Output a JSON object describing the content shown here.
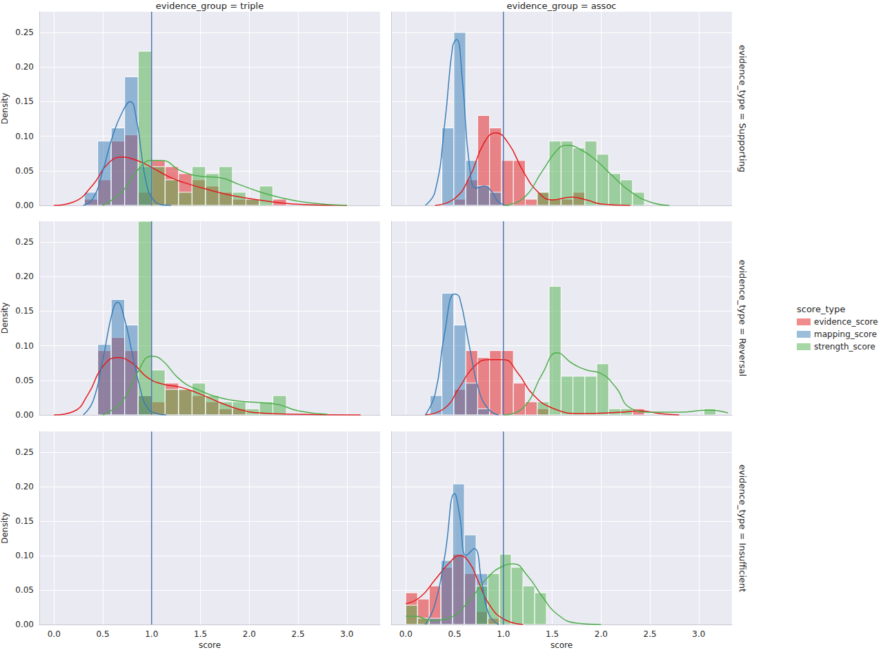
{
  "chart_data": {
    "type": "histogram",
    "columns": [
      "evidence_group = triple",
      "evidence_group = assoc"
    ],
    "rows": [
      "evidence_type = Supporting",
      "evidence_type = Reversal",
      "evidence_type = Insufficient"
    ],
    "x_label": "score",
    "y_label": "Density",
    "xlim": [
      -0.15,
      3.34
    ],
    "xticks": [
      {
        "value": 0,
        "label": "0.0"
      },
      {
        "value": 0.5,
        "label": "0.5"
      },
      {
        "value": 1,
        "label": "1.0"
      },
      {
        "value": 1.5,
        "label": "1.5"
      },
      {
        "value": 2,
        "label": "2.0"
      },
      {
        "value": 2.5,
        "label": "2.5"
      },
      {
        "value": 3,
        "label": "3.0"
      }
    ],
    "ylim": [
      0,
      0.28
    ],
    "yticks": [
      {
        "value": 0,
        "label": "0.00"
      },
      {
        "value": 0.05,
        "label": "0.05"
      },
      {
        "value": 0.1,
        "label": "0.10"
      },
      {
        "value": 0.15,
        "label": "0.15"
      },
      {
        "value": 0.2,
        "label": "0.20"
      },
      {
        "value": 0.25,
        "label": "0.25"
      }
    ],
    "grid": true,
    "legend": "right",
    "legend_title": "score_type",
    "series": [
      {
        "name": "evidence_score",
        "color": "#e41a1c"
      },
      {
        "name": "mapping_score",
        "color": "#377eb8"
      },
      {
        "name": "strength_score",
        "color": "#4daf4a"
      }
    ],
    "reference_line": {
      "x": 1,
      "color": "#4c72b0"
    },
    "panels": [
      {
        "row": "evidence_type = Supporting",
        "column": "evidence_group = triple",
        "bins": [
          0.31,
          0.448,
          0.586,
          0.724,
          0.862,
          1.0,
          1.138,
          1.276,
          1.414,
          1.552,
          1.69,
          1.828,
          1.966,
          2.104,
          2.242,
          2.38,
          2.518
        ],
        "series": [
          {
            "name": "evidence_score",
            "values": [
              0.009,
              0.037,
              0.093,
              0.102,
              0.019,
              0.065,
              0.056,
              0.046,
              0.037,
              0.028,
              0.019,
              0.009,
              0.009,
              0,
              0.009,
              0
            ],
            "kde_x": [
              0,
              0.2,
              0.4,
              0.55,
              0.7,
              0.85,
              1.0,
              1.2,
              1.4,
              1.6,
              1.8,
              2.0,
              2.3,
              2.6,
              3.0
            ],
            "kde_y": [
              0,
              0.005,
              0.03,
              0.06,
              0.07,
              0.065,
              0.055,
              0.04,
              0.03,
              0.022,
              0.015,
              0.01,
              0.004,
              0.001,
              0
            ]
          },
          {
            "name": "mapping_score",
            "values": [
              0.019,
              0.093,
              0.112,
              0.186,
              0.056,
              0,
              0,
              0,
              0,
              0,
              0,
              0,
              0,
              0,
              0,
              0
            ],
            "kde_x": [
              0.3,
              0.4,
              0.5,
              0.6,
              0.7,
              0.78,
              0.85,
              0.9,
              0.95,
              1.0,
              1.1,
              1.2
            ],
            "kde_y": [
              0,
              0.01,
              0.05,
              0.1,
              0.135,
              0.15,
              0.12,
              0.07,
              0.03,
              0.012,
              0.001,
              0
            ]
          },
          {
            "name": "strength_score",
            "values": [
              0,
              0,
              0,
              0,
              0.223,
              0.056,
              0.037,
              0.019,
              0.056,
              0.046,
              0.056,
              0.019,
              0.009,
              0.028,
              0,
              0
            ],
            "kde_x": [
              0.5,
              0.7,
              0.85,
              1.0,
              1.1,
              1.3,
              1.5,
              1.7,
              1.9,
              2.1,
              2.3,
              2.6,
              3.0
            ],
            "kde_y": [
              0,
              0.02,
              0.05,
              0.065,
              0.065,
              0.05,
              0.042,
              0.04,
              0.03,
              0.02,
              0.012,
              0.004,
              0
            ]
          }
        ]
      },
      {
        "row": "evidence_type = Supporting",
        "column": "evidence_group = assoc",
        "bins": [
          0.37,
          0.492,
          0.614,
          0.736,
          0.858,
          0.98,
          1.102,
          1.224,
          1.346,
          1.468,
          1.59,
          1.712,
          1.834,
          1.956,
          2.078,
          2.2,
          2.322,
          2.444
        ],
        "series": [
          {
            "name": "evidence_score",
            "values": [
              0,
              0.009,
              0.037,
              0.13,
              0.112,
              0.065,
              0.065,
              0.009,
              0.019,
              0.009,
              0.009,
              0.019,
              0,
              0,
              0,
              0,
              0
            ],
            "kde_x": [
              0.3,
              0.5,
              0.65,
              0.8,
              0.92,
              1.05,
              1.2,
              1.35,
              1.5,
              1.7,
              1.85,
              2.0,
              2.3
            ],
            "kde_y": [
              0,
              0.01,
              0.04,
              0.09,
              0.105,
              0.09,
              0.05,
              0.02,
              0.008,
              0.012,
              0.008,
              0.002,
              0
            ]
          },
          {
            "name": "mapping_score",
            "values": [
              0.112,
              0.25,
              0.065,
              0.028,
              0.019,
              0,
              0,
              0,
              0,
              0,
              0,
              0,
              0,
              0,
              0,
              0,
              0
            ],
            "kde_x": [
              0.2,
              0.3,
              0.4,
              0.48,
              0.52,
              0.58,
              0.65,
              0.72,
              0.8,
              0.88,
              0.95,
              1.05
            ],
            "kde_y": [
              0,
              0.02,
              0.12,
              0.23,
              0.24,
              0.18,
              0.06,
              0.025,
              0.028,
              0.02,
              0.005,
              0
            ]
          },
          {
            "name": "strength_score",
            "values": [
              0,
              0,
              0,
              0,
              0,
              0,
              0,
              0,
              0.019,
              0.093,
              0.093,
              0.083,
              0.093,
              0.074,
              0.046,
              0.037,
              0.019
            ],
            "kde_x": [
              1.0,
              1.2,
              1.4,
              1.55,
              1.65,
              1.8,
              1.95,
              2.1,
              2.3,
              2.5,
              2.7
            ],
            "kde_y": [
              0,
              0.01,
              0.05,
              0.08,
              0.087,
              0.08,
              0.065,
              0.045,
              0.02,
              0.005,
              0
            ]
          }
        ]
      },
      {
        "row": "evidence_type = Reversal",
        "column": "evidence_group = triple",
        "bins": [
          0.31,
          0.448,
          0.586,
          0.724,
          0.862,
          1.0,
          1.138,
          1.276,
          1.414,
          1.552,
          1.69,
          1.828,
          1.966,
          2.104,
          2.242,
          2.38,
          2.518
        ],
        "series": [
          {
            "name": "evidence_score",
            "values": [
              0,
              0.093,
              0.112,
              0.093,
              0.028,
              0.019,
              0.046,
              0.037,
              0.028,
              0.019,
              0.009,
              0.009,
              0,
              0,
              0,
              0
            ],
            "kde_x": [
              0,
              0.2,
              0.35,
              0.5,
              0.65,
              0.8,
              0.95,
              1.1,
              1.3,
              1.5,
              1.7,
              1.9,
              2.1,
              2.5,
              3.14
            ],
            "kde_y": [
              0,
              0.005,
              0.03,
              0.07,
              0.083,
              0.075,
              0.055,
              0.045,
              0.04,
              0.03,
              0.018,
              0.008,
              0.003,
              0.001,
              0
            ]
          },
          {
            "name": "mapping_score",
            "values": [
              0,
              0.102,
              0.167,
              0.13,
              0.028,
              0,
              0,
              0,
              0,
              0,
              0,
              0,
              0,
              0,
              0,
              0
            ],
            "kde_x": [
              0.3,
              0.4,
              0.5,
              0.6,
              0.65,
              0.72,
              0.8,
              0.88,
              0.95,
              1.05,
              1.15
            ],
            "kde_y": [
              0,
              0.02,
              0.08,
              0.15,
              0.163,
              0.14,
              0.09,
              0.04,
              0.012,
              0.002,
              0
            ]
          },
          {
            "name": "strength_score",
            "values": [
              0,
              0,
              0,
              0,
              0.28,
              0.065,
              0.037,
              0.037,
              0.046,
              0.028,
              0.019,
              0.019,
              0.009,
              0.019,
              0.028,
              0
            ],
            "kde_x": [
              0.5,
              0.7,
              0.85,
              1.0,
              1.1,
              1.3,
              1.5,
              1.7,
              1.9,
              2.1,
              2.3,
              2.5,
              2.8
            ],
            "kde_y": [
              0,
              0.02,
              0.06,
              0.085,
              0.08,
              0.05,
              0.035,
              0.025,
              0.02,
              0.018,
              0.015,
              0.006,
              0.001
            ]
          }
        ]
      },
      {
        "row": "evidence_type = Reversal",
        "column": "evidence_group = assoc",
        "bins": [
          0.248,
          0.37,
          0.492,
          0.614,
          0.736,
          0.858,
          0.98,
          1.102,
          1.224,
          1.346,
          1.468,
          1.59,
          1.712,
          1.834,
          1.956,
          2.078,
          2.2,
          2.322,
          2.444,
          2.566,
          2.688,
          2.81,
          2.932,
          3.054,
          3.176
        ],
        "series": [
          {
            "name": "evidence_score",
            "values": [
              0,
              0,
              0.037,
              0.093,
              0.083,
              0.093,
              0.093,
              0.046,
              0.019,
              0.009,
              0,
              0,
              0,
              0,
              0,
              0,
              0,
              0.009,
              0,
              0,
              0,
              0,
              0,
              0
            ],
            "kde_x": [
              0.2,
              0.4,
              0.55,
              0.7,
              0.85,
              1.0,
              1.15,
              1.3,
              1.5,
              1.8,
              2.2,
              2.4,
              2.6,
              2.8
            ],
            "kde_y": [
              0,
              0.01,
              0.04,
              0.07,
              0.08,
              0.08,
              0.06,
              0.03,
              0.01,
              0.002,
              0.004,
              0.006,
              0.002,
              0
            ]
          },
          {
            "name": "mapping_score",
            "values": [
              0.028,
              0.176,
              0.13,
              0.046,
              0.009,
              0,
              0,
              0,
              0,
              0,
              0,
              0,
              0,
              0,
              0,
              0,
              0,
              0,
              0,
              0,
              0,
              0,
              0,
              0
            ],
            "kde_x": [
              0.2,
              0.3,
              0.4,
              0.5,
              0.55,
              0.65,
              0.75,
              0.85,
              0.95
            ],
            "kde_y": [
              0,
              0.03,
              0.12,
              0.175,
              0.17,
              0.1,
              0.035,
              0.008,
              0
            ]
          },
          {
            "name": "strength_score",
            "values": [
              0,
              0,
              0,
              0,
              0,
              0,
              0,
              0,
              0,
              0.019,
              0.186,
              0.056,
              0.056,
              0.056,
              0.074,
              0.009,
              0.009,
              0,
              0,
              0,
              0,
              0,
              0,
              0.009
            ],
            "kde_x": [
              1.0,
              1.2,
              1.4,
              1.55,
              1.7,
              1.85,
              2.0,
              2.15,
              2.3,
              2.5,
              2.8,
              3.1,
              3.3
            ],
            "kde_y": [
              0,
              0.01,
              0.06,
              0.09,
              0.075,
              0.065,
              0.06,
              0.04,
              0.01,
              0.004,
              0.004,
              0.007,
              0.003
            ]
          }
        ]
      },
      {
        "row": "evidence_type = Insufficient",
        "column": "evidence_group = triple",
        "bins": [],
        "series": []
      },
      {
        "row": "evidence_type = Insufficient",
        "column": "evidence_group = assoc",
        "bins": [
          0,
          0.12,
          0.24,
          0.36,
          0.48,
          0.6,
          0.72,
          0.84,
          0.96,
          1.08,
          1.2,
          1.32,
          1.44
        ],
        "series": [
          {
            "name": "evidence_score",
            "values": [
              0.046,
              0.037,
              0.056,
              0.083,
              0.102,
              0.074,
              0.019,
              0.009,
              0,
              0,
              0,
              0
            ],
            "kde_x": [
              0,
              0.15,
              0.3,
              0.45,
              0.55,
              0.65,
              0.75,
              0.85,
              1.0,
              1.2
            ],
            "kde_y": [
              0.03,
              0.04,
              0.065,
              0.09,
              0.1,
              0.09,
              0.06,
              0.03,
              0.008,
              0
            ]
          },
          {
            "name": "mapping_score",
            "values": [
              0,
              0,
              0.009,
              0.093,
              0.204,
              0.13,
              0.074,
              0,
              0,
              0,
              0,
              0
            ],
            "kde_x": [
              0.2,
              0.3,
              0.4,
              0.5,
              0.55,
              0.62,
              0.7,
              0.78,
              0.85,
              0.95
            ],
            "kde_y": [
              0,
              0.03,
              0.1,
              0.19,
              0.16,
              0.1,
              0.11,
              0.06,
              0.015,
              0
            ]
          },
          {
            "name": "strength_score",
            "values": [
              0.028,
              0.009,
              0,
              0,
              0,
              0,
              0.056,
              0.074,
              0.102,
              0.083,
              0.056,
              0.046
            ],
            "kde_x": [
              0,
              0.1,
              0.25,
              0.45,
              0.65,
              0.85,
              1.0,
              1.1,
              1.25,
              1.4,
              1.55,
              1.75,
              2.0
            ],
            "kde_y": [
              0.012,
              0.012,
              0.006,
              0.01,
              0.035,
              0.07,
              0.085,
              0.088,
              0.07,
              0.04,
              0.015,
              0.002,
              0
            ]
          }
        ]
      }
    ]
  }
}
